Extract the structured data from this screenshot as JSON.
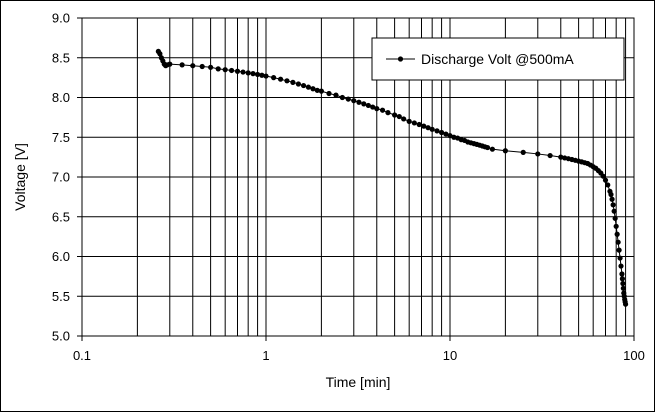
{
  "chart_data": {
    "type": "line",
    "x_scale": "log",
    "title": "",
    "xlabel": "Time [min]",
    "ylabel": "Voltage [V]",
    "xlim": [
      0.1,
      100
    ],
    "ylim": [
      5.0,
      9.0
    ],
    "x_tick_labels": [
      "0.1",
      "1",
      "10",
      "100"
    ],
    "y_tick_labels": [
      "5.0",
      "5.5",
      "6.0",
      "6.5",
      "7.0",
      "7.5",
      "8.0",
      "8.5",
      "9.0"
    ],
    "grid": true,
    "legend_position": "top-right",
    "series": [
      {
        "name": "Discharge Volt @500mA",
        "color": "#000000",
        "x": [
          0.26,
          0.265,
          0.27,
          0.275,
          0.28,
          0.285,
          0.29,
          0.3,
          0.35,
          0.4,
          0.45,
          0.5,
          0.55,
          0.6,
          0.65,
          0.7,
          0.75,
          0.8,
          0.85,
          0.9,
          0.95,
          1.0,
          1.1,
          1.2,
          1.3,
          1.4,
          1.5,
          1.6,
          1.7,
          1.8,
          1.9,
          2.0,
          2.2,
          2.4,
          2.6,
          2.8,
          3.0,
          3.2,
          3.4,
          3.6,
          3.8,
          4.0,
          4.3,
          4.6,
          5.0,
          5.3,
          5.6,
          6.0,
          6.4,
          6.8,
          7.2,
          7.6,
          8.0,
          8.5,
          9.0,
          9.5,
          10,
          10.5,
          11,
          11.5,
          12,
          12.5,
          13,
          13.5,
          14,
          14.5,
          15,
          15.5,
          16,
          17,
          20,
          25,
          30,
          35,
          40,
          42,
          44,
          46,
          48,
          50,
          52,
          54,
          56,
          58,
          60,
          62,
          64,
          66,
          68,
          70,
          72,
          74,
          75,
          76,
          77,
          78,
          79,
          80,
          81,
          82,
          83,
          84,
          85,
          86,
          86.5,
          87,
          87.5,
          88,
          88.5,
          89,
          89.5,
          90
        ],
        "y": [
          8.58,
          8.55,
          8.5,
          8.46,
          8.42,
          8.4,
          8.41,
          8.42,
          8.41,
          8.4,
          8.39,
          8.38,
          8.36,
          8.35,
          8.34,
          8.33,
          8.32,
          8.31,
          8.3,
          8.29,
          8.28,
          8.27,
          8.25,
          8.23,
          8.21,
          8.19,
          8.17,
          8.15,
          8.13,
          8.11,
          8.09,
          8.08,
          8.05,
          8.03,
          8.0,
          7.98,
          7.96,
          7.94,
          7.92,
          7.9,
          7.88,
          7.86,
          7.84,
          7.81,
          7.78,
          7.76,
          7.73,
          7.7,
          7.68,
          7.66,
          7.64,
          7.62,
          7.6,
          7.58,
          7.56,
          7.54,
          7.52,
          7.5,
          7.49,
          7.47,
          7.46,
          7.44,
          7.43,
          7.42,
          7.41,
          7.4,
          7.39,
          7.38,
          7.37,
          7.35,
          7.33,
          7.31,
          7.29,
          7.27,
          7.25,
          7.24,
          7.23,
          7.22,
          7.21,
          7.2,
          7.19,
          7.18,
          7.17,
          7.15,
          7.13,
          7.11,
          7.08,
          7.05,
          7.01,
          6.96,
          6.9,
          6.82,
          6.78,
          6.72,
          6.65,
          6.57,
          6.48,
          6.38,
          6.28,
          6.18,
          6.08,
          5.98,
          5.88,
          5.78,
          5.72,
          5.66,
          5.6,
          5.54,
          5.5,
          5.46,
          5.43,
          5.4
        ]
      }
    ]
  }
}
